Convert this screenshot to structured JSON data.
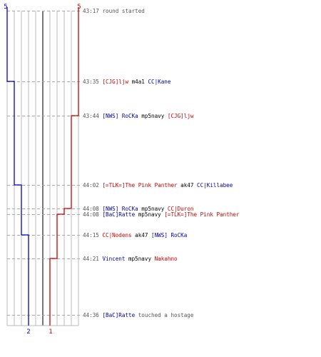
{
  "colors": {
    "blue_team": "#0000cc",
    "red_team": "#cc0000",
    "grid": "#bbbbbb",
    "center_line": "#777777",
    "time_text": "#555555"
  },
  "counts": {
    "blue_start": "5",
    "red_start": "5",
    "blue_end": "2",
    "red_end": "1"
  },
  "events": [
    {
      "time": "43:17",
      "parts": [
        {
          "t": "round started",
          "c": "txt"
        }
      ]
    },
    {
      "time": "43:35",
      "parts": [
        {
          "t": "[CJG]ljw",
          "c": "red"
        },
        {
          "t": " m4a1 ",
          "c": "blk"
        },
        {
          "t": "CC|Kane",
          "c": "blue"
        }
      ]
    },
    {
      "time": "43:44",
      "parts": [
        {
          "t": "[NWS] RoCKa",
          "c": "blue"
        },
        {
          "t": " mp5navy ",
          "c": "blk"
        },
        {
          "t": "[CJG]ljw",
          "c": "red"
        }
      ]
    },
    {
      "time": "44:02",
      "parts": [
        {
          "t": "[=TLK=]The Pink Panther",
          "c": "red"
        },
        {
          "t": " ak47 ",
          "c": "blk"
        },
        {
          "t": "CC|Killabee",
          "c": "blue"
        }
      ]
    },
    {
      "time": "44:08",
      "parts": [
        {
          "t": "[NWS] RoCKa",
          "c": "blue"
        },
        {
          "t": " mp5navy ",
          "c": "blk"
        },
        {
          "t": "CC|Duron",
          "c": "red"
        }
      ]
    },
    {
      "time": "44:08",
      "parts": [
        {
          "t": "[BaC]Ratte",
          "c": "blue"
        },
        {
          "t": " mp5navy ",
          "c": "blk"
        },
        {
          "t": "[=TLK=]The Pink Panther",
          "c": "red"
        }
      ]
    },
    {
      "time": "44:15",
      "parts": [
        {
          "t": "CC|Nodens",
          "c": "red"
        },
        {
          "t": " ak47 ",
          "c": "blk"
        },
        {
          "t": "[NWS] RoCKa",
          "c": "blue"
        }
      ]
    },
    {
      "time": "44:21",
      "parts": [
        {
          "t": "Vincent",
          "c": "blue"
        },
        {
          "t": " mp5navy ",
          "c": "blk"
        },
        {
          "t": "Nakahno",
          "c": "red"
        }
      ]
    },
    {
      "time": "44:36",
      "parts": [
        {
          "t": "[BaC]Ratte",
          "c": "blue"
        },
        {
          "t": " touched a hostage",
          "c": "txt"
        }
      ]
    }
  ],
  "chart_data": {
    "type": "line",
    "x": [
      "43:17",
      "43:35",
      "43:44",
      "44:02",
      "44:08",
      "44:08",
      "44:15",
      "44:21",
      "44:36"
    ],
    "series": [
      {
        "values": [
          5,
          4,
          4,
          3,
          3,
          3,
          2,
          2,
          2
        ]
      },
      {
        "values": [
          5,
          5,
          4,
          4,
          3,
          2,
          2,
          1,
          1
        ]
      }
    ],
    "ylim": [
      0,
      10
    ],
    "grid": true
  }
}
